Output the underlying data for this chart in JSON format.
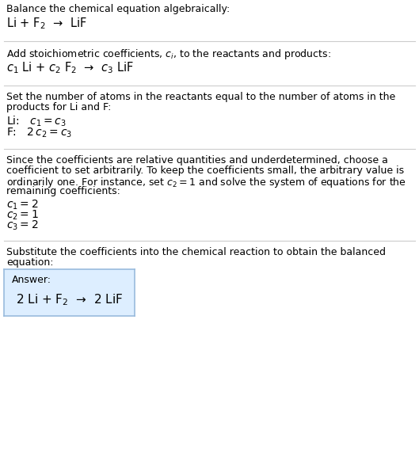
{
  "title": "Balance the chemical equation algebraically:",
  "eq1": "Li + F$_2$  →  LiF",
  "sec2_header": "Add stoichiometric coefficients, $c_i$, to the reactants and products:",
  "eq2": "$c_1$ Li + $c_2$ F$_2$  →  $c_3$ LiF",
  "sec3_line1": "Set the number of atoms in the reactants equal to the number of atoms in the",
  "sec3_line2": "products for Li and F:",
  "li_eq": "Li:   $c_1 = c_3$",
  "f_eq": "F:   $2\\,c_2 = c_3$",
  "sec4_line1": "Since the coefficients are relative quantities and underdetermined, choose a",
  "sec4_line2": "coefficient to set arbitrarily. To keep the coefficients small, the arbitrary value is",
  "sec4_line3": "ordinarily one. For instance, set $c_2 = 1$ and solve the system of equations for the",
  "sec4_line4": "remaining coefficients:",
  "c1_eq": "$c_1 = 2$",
  "c2_eq": "$c_2 = 1$",
  "c3_eq": "$c_3 = 2$",
  "sec5_line1": "Substitute the coefficients into the chemical reaction to obtain the balanced",
  "sec5_line2": "equation:",
  "answer_label": "Answer:",
  "answer_eq": "2 Li + F$_2$  →  2 LiF",
  "bg_color": "#ffffff",
  "text_color": "#000000",
  "line_color": "#cccccc",
  "box_fill": "#ddeeff",
  "box_edge": "#99bbdd"
}
